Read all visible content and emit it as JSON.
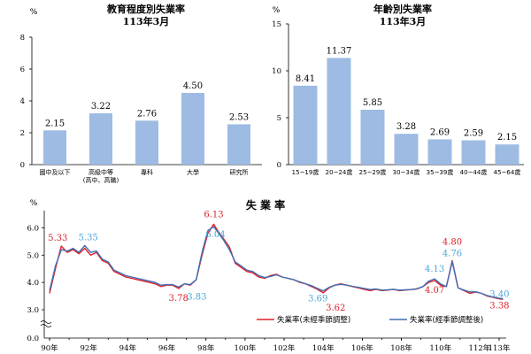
{
  "chart_data": [
    {
      "type": "bar",
      "title": "教育程度別失業率",
      "subtitle": "113年3月",
      "ylabel": "%",
      "ylim": [
        0,
        8
      ],
      "yticks": [
        0,
        2,
        4,
        6,
        8
      ],
      "categories": [
        "國中及以下",
        "高級中等\n(高中、高職)",
        "專科",
        "大學",
        "研究所"
      ],
      "values": [
        2.15,
        3.22,
        2.76,
        4.5,
        2.53
      ],
      "value_labels": [
        "2.15",
        "3.22",
        "2.76",
        "4.50",
        "2.53"
      ],
      "bar_color": "#9dbbe3"
    },
    {
      "type": "bar",
      "title": "年齡別失業率",
      "subtitle": "113年3月",
      "ylabel": "%",
      "ylim": [
        0,
        15
      ],
      "yticks": [
        0,
        5,
        10,
        15
      ],
      "categories": [
        "15~19歲",
        "20~24歲",
        "25~29歲",
        "30~34歲",
        "35~39歲",
        "40~44歲",
        "45~64歲"
      ],
      "values": [
        8.41,
        11.37,
        5.85,
        3.28,
        2.69,
        2.59,
        2.15
      ],
      "value_labels": [
        "8.41",
        "11.37",
        "5.85",
        "3.28",
        "2.69",
        "2.59",
        "2.15"
      ],
      "bar_color": "#9dbbe3"
    },
    {
      "type": "line",
      "title": "失 業 率",
      "ylabel": "%",
      "ylim": [
        3.0,
        6.5
      ],
      "yticks": [
        3.0,
        4.0,
        5.0,
        6.0
      ],
      "yticks_labels": [
        "3.0",
        "4.0",
        "5.0",
        "6.0"
      ],
      "y_zero_label": "0.0",
      "xlim": [
        90,
        113
      ],
      "xticks": [
        "90年",
        "92年",
        "94年",
        "96年",
        "98年",
        "100年",
        "102年",
        "104年",
        "106年",
        "108年",
        "110年",
        "112年",
        "113年"
      ],
      "xtick_values": [
        90,
        92,
        94,
        96,
        98,
        100,
        102,
        104,
        106,
        108,
        110,
        112,
        113
      ],
      "legend_position": "bottom",
      "series": [
        {
          "name": "失業率(未經季節調整)",
          "color": "#e0202a",
          "x": [
            90,
            90.3,
            90.6,
            90.9,
            91.2,
            91.5,
            91.8,
            92.1,
            92.4,
            92.7,
            93.0,
            93.3,
            93.6,
            93.9,
            94.2,
            94.5,
            94.8,
            95.1,
            95.4,
            95.7,
            96.0,
            96.3,
            96.6,
            96.9,
            97.2,
            97.5,
            97.8,
            98.1,
            98.4,
            98.6,
            98.9,
            99.2,
            99.5,
            99.8,
            100.1,
            100.4,
            100.7,
            101.0,
            101.3,
            101.6,
            101.9,
            102.2,
            102.5,
            102.8,
            103.1,
            103.4,
            103.7,
            104.0,
            104.3,
            104.6,
            104.9,
            105.2,
            105.5,
            105.8,
            106.1,
            106.4,
            106.7,
            107.0,
            107.3,
            107.6,
            107.9,
            108.2,
            108.5,
            108.8,
            109.1,
            109.4,
            109.7,
            110.0,
            110.3,
            110.6,
            110.9,
            111.2,
            111.5,
            111.8,
            112.1,
            112.4,
            112.7,
            113.0,
            113.2
          ],
          "y": [
            3.6,
            4.5,
            5.33,
            5.1,
            5.2,
            5.05,
            5.25,
            5.0,
            5.1,
            4.8,
            4.7,
            4.4,
            4.3,
            4.2,
            4.15,
            4.1,
            4.05,
            4.0,
            3.95,
            3.85,
            3.9,
            3.9,
            3.78,
            3.95,
            3.9,
            4.1,
            5.0,
            5.8,
            6.13,
            5.9,
            5.6,
            5.3,
            4.7,
            4.55,
            4.4,
            4.35,
            4.2,
            4.15,
            4.25,
            4.3,
            4.2,
            4.15,
            4.1,
            4.0,
            3.95,
            3.85,
            3.75,
            3.62,
            3.8,
            3.9,
            3.95,
            3.9,
            3.85,
            3.8,
            3.75,
            3.7,
            3.75,
            3.7,
            3.72,
            3.75,
            3.7,
            3.72,
            3.74,
            3.76,
            3.85,
            4.0,
            4.07,
            3.9,
            3.85,
            4.8,
            3.8,
            3.7,
            3.6,
            3.65,
            3.6,
            3.5,
            3.45,
            3.4,
            3.38
          ]
        },
        {
          "name": "失業率(經季節調整後)",
          "color": "#3f6fb5",
          "x": [
            90,
            90.3,
            90.6,
            90.9,
            91.2,
            91.5,
            91.8,
            92.1,
            92.4,
            92.7,
            93.0,
            93.3,
            93.6,
            93.9,
            94.2,
            94.5,
            94.8,
            95.1,
            95.4,
            95.7,
            96.0,
            96.3,
            96.6,
            96.9,
            97.2,
            97.5,
            97.8,
            98.1,
            98.4,
            98.6,
            98.9,
            99.2,
            99.5,
            99.8,
            100.1,
            100.4,
            100.7,
            101.0,
            101.3,
            101.6,
            101.9,
            102.2,
            102.5,
            102.8,
            103.1,
            103.4,
            103.7,
            104.0,
            104.3,
            104.6,
            104.9,
            105.2,
            105.5,
            105.8,
            106.1,
            106.4,
            106.7,
            107.0,
            107.3,
            107.6,
            107.9,
            108.2,
            108.5,
            108.8,
            109.1,
            109.4,
            109.7,
            110.0,
            110.3,
            110.6,
            110.9,
            111.2,
            111.5,
            111.8,
            112.1,
            112.4,
            112.7,
            113.0,
            113.2
          ],
          "y": [
            3.7,
            4.6,
            5.2,
            5.15,
            5.25,
            5.1,
            5.35,
            5.1,
            5.15,
            4.85,
            4.75,
            4.45,
            4.35,
            4.25,
            4.2,
            4.15,
            4.1,
            4.05,
            4.0,
            3.9,
            3.92,
            3.92,
            3.83,
            3.95,
            3.92,
            4.1,
            5.1,
            5.9,
            6.04,
            5.85,
            5.55,
            5.2,
            4.75,
            4.6,
            4.45,
            4.4,
            4.25,
            4.18,
            4.22,
            4.28,
            4.2,
            4.15,
            4.1,
            4.02,
            3.95,
            3.88,
            3.78,
            3.69,
            3.82,
            3.9,
            3.93,
            3.9,
            3.86,
            3.82,
            3.78,
            3.74,
            3.76,
            3.72,
            3.73,
            3.75,
            3.72,
            3.73,
            3.74,
            3.77,
            3.85,
            4.05,
            4.13,
            3.95,
            3.85,
            4.76,
            3.8,
            3.72,
            3.65,
            3.66,
            3.6,
            3.52,
            3.47,
            3.42,
            3.4
          ]
        }
      ],
      "annotations": [
        {
          "text": "5.33",
          "x": 90.6,
          "y": 5.33,
          "color": "red"
        },
        {
          "text": "5.35",
          "x": 91.8,
          "y": 5.35,
          "color": "blue"
        },
        {
          "text": "3.78",
          "x": 96.6,
          "y": 3.78,
          "color": "red"
        },
        {
          "text": "3.83",
          "x": 96.9,
          "y": 3.83,
          "color": "blue"
        },
        {
          "text": "6.13",
          "x": 98.4,
          "y": 6.13,
          "color": "red"
        },
        {
          "text": "6.04",
          "x": 98.4,
          "y": 6.04,
          "color": "blue"
        },
        {
          "text": "3.69",
          "x": 104.0,
          "y": 3.69,
          "color": "blue"
        },
        {
          "text": "3.62",
          "x": 104.0,
          "y": 3.62,
          "color": "red"
        },
        {
          "text": "4.13",
          "x": 109.7,
          "y": 4.13,
          "color": "blue"
        },
        {
          "text": "4.07",
          "x": 109.7,
          "y": 4.07,
          "color": "red"
        },
        {
          "text": "4.80",
          "x": 110.6,
          "y": 4.8,
          "color": "red"
        },
        {
          "text": "4.76",
          "x": 110.6,
          "y": 4.76,
          "color": "blue"
        },
        {
          "text": "3.40",
          "x": 113.2,
          "y": 3.4,
          "color": "blue"
        },
        {
          "text": "3.38",
          "x": 113.2,
          "y": 3.38,
          "color": "red"
        }
      ]
    }
  ]
}
